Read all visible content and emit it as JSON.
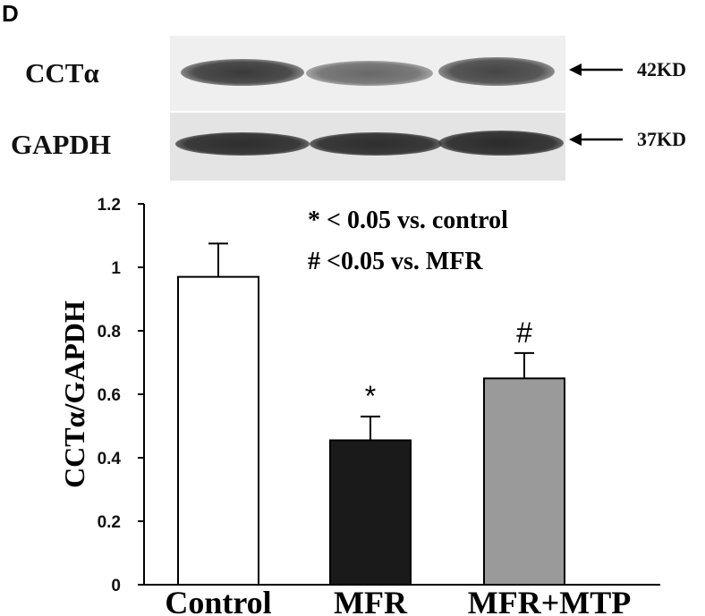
{
  "panel_letter": "D",
  "blot": {
    "rows": [
      {
        "label": "CCTα",
        "marker": "42KD",
        "lanes": 3
      },
      {
        "label": "GAPDH",
        "marker": "37KD",
        "lanes": 3
      }
    ],
    "colors": {
      "background": "#efefef",
      "band_dark": "#3a3a3a",
      "band_light": "#6d6d6d"
    }
  },
  "chart_data": {
    "type": "bar",
    "categories": [
      "Control",
      "MFR",
      "MFR+MTP"
    ],
    "values": [
      0.97,
      0.455,
      0.65
    ],
    "errors": [
      0.105,
      0.075,
      0.08
    ],
    "significance": [
      "",
      "*",
      "#"
    ],
    "bar_colors": [
      "#ffffff",
      "#1a1a1a",
      "#9a9a9a"
    ],
    "ylabel": "CCTα/GAPDH",
    "xlabel": "",
    "ylim": [
      0,
      1.2
    ],
    "yticks": [
      "0",
      "0.2",
      "0.4",
      "0.6",
      "0.8",
      "1",
      "1.2"
    ],
    "ytick_values": [
      0,
      0.2,
      0.4,
      0.6,
      0.8,
      1.0,
      1.2
    ],
    "annotations": [
      "* < 0.05 vs. control",
      "# <0.05 vs. MFR"
    ],
    "grid": false
  }
}
